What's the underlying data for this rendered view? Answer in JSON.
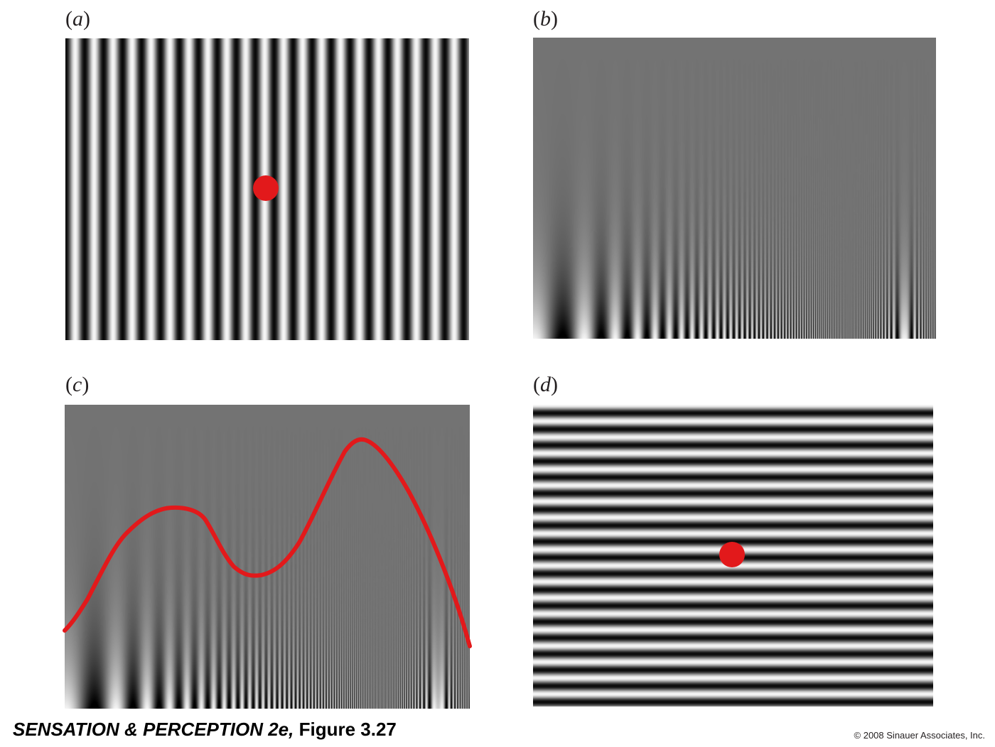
{
  "panels": [
    {
      "id": "a",
      "label_open": "(",
      "label_letter": "a",
      "label_close": ")",
      "pattern": "vertical-grating",
      "fixation_dot": true
    },
    {
      "id": "b",
      "label_open": "(",
      "label_letter": "b",
      "label_close": ")",
      "pattern": "contrast-sensitivity-chart",
      "fixation_dot": false
    },
    {
      "id": "c",
      "label_open": "(",
      "label_letter": "c",
      "label_close": ")",
      "pattern": "contrast-sensitivity-chart-with-curve",
      "fixation_dot": false
    },
    {
      "id": "d",
      "label_open": "(",
      "label_letter": "d",
      "label_close": ")",
      "pattern": "horizontal-grating",
      "fixation_dot": true
    }
  ],
  "colors": {
    "dot": "#e2191b",
    "curve": "#e2191b",
    "background_gray": "#737373"
  },
  "footer": {
    "title_italic": "SENSATION & PERCEPTION 2e,",
    "title_rest": " Figure 3.27",
    "copyright": "© 2008 Sinauer Associates, Inc."
  }
}
